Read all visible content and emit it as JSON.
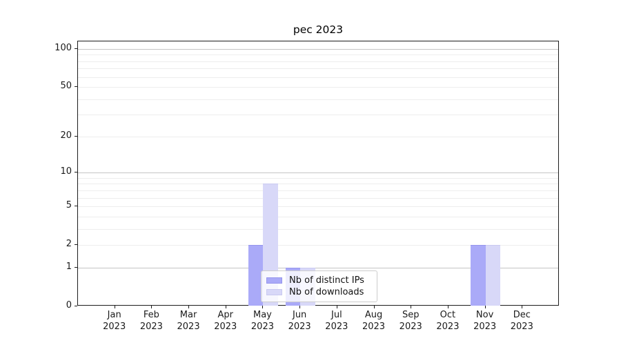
{
  "title": "pec 2023",
  "chart_data": {
    "type": "bar",
    "title": "pec 2023",
    "categories": [
      "Jan 2023",
      "Feb 2023",
      "Mar 2023",
      "Apr 2023",
      "May 2023",
      "Jun 2023",
      "Jul 2023",
      "Aug 2023",
      "Sep 2023",
      "Oct 2023",
      "Nov 2023",
      "Dec 2023"
    ],
    "series": [
      {
        "name": "Nb of distinct IPs",
        "values": [
          0,
          0,
          0,
          0,
          2,
          1,
          0,
          0,
          0,
          0,
          2,
          0
        ],
        "color": "#aaaaf8",
        "edge_color": "#9595ec"
      },
      {
        "name": "Nb of downloads",
        "values": [
          0,
          0,
          0,
          0,
          8,
          1,
          0,
          0,
          0,
          0,
          2,
          0
        ],
        "color": "#d8d8f8",
        "edge_color": "#c9c9f0"
      }
    ],
    "xlabel": "",
    "ylabel": "",
    "y_scale": "log10(1+v) (symlog-like)",
    "ylim": [
      0,
      115
    ],
    "y_ticks_labeled": [
      0,
      1,
      2,
      5,
      10,
      20,
      50,
      100
    ],
    "y_major_gridlines": [
      1,
      10,
      100
    ],
    "y_minor_gridlines": [
      2,
      3,
      4,
      5,
      6,
      7,
      8,
      9,
      20,
      30,
      40,
      50,
      60,
      70,
      80,
      90
    ],
    "grid": true,
    "legend_position": "lower center inside plot"
  },
  "colors": {
    "major_gridline": "#c4c4c4",
    "minor_gridline": "#ededed",
    "spine": "#1b1b1b",
    "tick_text": "#1a1a1a",
    "legend_border": "#cccccc"
  }
}
